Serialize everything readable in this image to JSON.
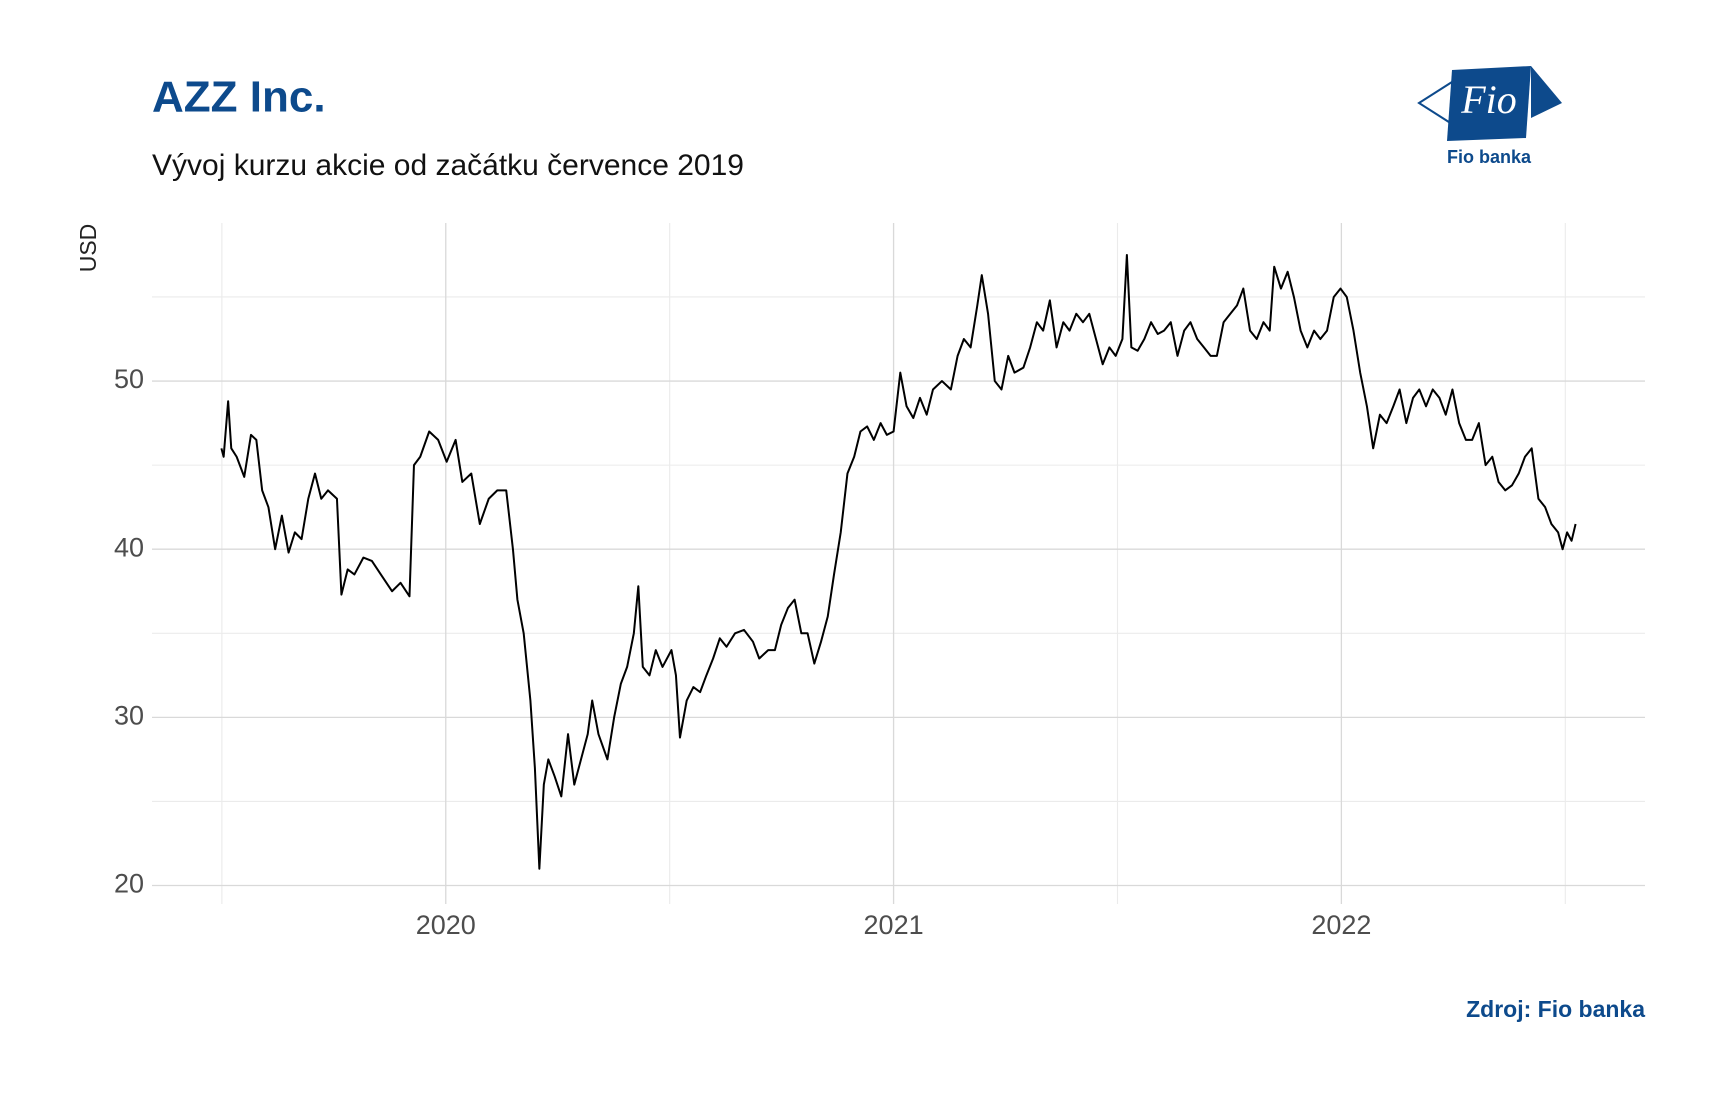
{
  "chart_data": {
    "type": "line",
    "title": "AZZ Inc.",
    "subtitle": "Vývoj kurzu akcie od začátku července 2019",
    "y_label": "USD",
    "source": "Zdroj: Fio banka",
    "logo": {
      "text": "Fio",
      "caption": "Fio banka"
    },
    "xlim": [
      2019.344,
      2022.678
    ],
    "xticks": [
      2020,
      2021,
      2022
    ],
    "xminor": [
      2019.5,
      2020.5,
      2021.5,
      2022.5
    ],
    "ylim": [
      18.9,
      59.4
    ],
    "yticks": [
      20,
      30,
      40,
      50
    ],
    "yminor": [
      25,
      35,
      45,
      55
    ],
    "grid": true,
    "series": [
      {
        "name": "AZZ",
        "color": "#000000",
        "x": [
          2019.499,
          2019.504,
          2019.514,
          2019.521,
          2019.533,
          2019.55,
          2019.565,
          2019.577,
          2019.59,
          2019.604,
          2019.619,
          2019.634,
          2019.649,
          2019.663,
          2019.678,
          2019.693,
          2019.708,
          2019.722,
          2019.737,
          2019.757,
          2019.767,
          2019.781,
          2019.796,
          2019.816,
          2019.835,
          2019.855,
          2019.88,
          2019.899,
          2019.919,
          2019.929,
          2019.943,
          2019.963,
          2019.983,
          2020.002,
          2020.022,
          2020.037,
          2020.057,
          2020.076,
          2020.096,
          2020.115,
          2020.135,
          2020.15,
          2020.16,
          2020.174,
          2020.189,
          2020.199,
          2020.209,
          2020.219,
          2020.229,
          2020.243,
          2020.258,
          2020.273,
          2020.287,
          2020.302,
          2020.317,
          2020.327,
          2020.341,
          2020.361,
          2020.376,
          2020.391,
          2020.405,
          2020.42,
          2020.43,
          2020.44,
          2020.455,
          2020.469,
          2020.484,
          2020.504,
          2020.514,
          2020.523,
          2020.538,
          2020.553,
          2020.568,
          2020.582,
          2020.597,
          2020.612,
          2020.627,
          2020.646,
          2020.666,
          2020.686,
          2020.7,
          2020.72,
          2020.735,
          2020.749,
          2020.764,
          2020.779,
          2020.794,
          2020.808,
          2020.823,
          2020.838,
          2020.853,
          2020.867,
          2020.882,
          2020.897,
          2020.912,
          2020.926,
          2020.941,
          2020.956,
          2020.971,
          2020.985,
          2021.0,
          2021.015,
          2021.029,
          2021.044,
          2021.059,
          2021.074,
          2021.088,
          2021.108,
          2021.128,
          2021.143,
          2021.157,
          2021.172,
          2021.187,
          2021.197,
          2021.211,
          2021.226,
          2021.241,
          2021.256,
          2021.27,
          2021.29,
          2021.305,
          2021.32,
          2021.334,
          2021.349,
          2021.364,
          2021.379,
          2021.393,
          2021.408,
          2021.423,
          2021.437,
          2021.452,
          2021.467,
          2021.482,
          2021.496,
          2021.511,
          2021.521,
          2021.531,
          2021.545,
          2021.56,
          2021.575,
          2021.59,
          2021.604,
          2021.619,
          2021.634,
          2021.649,
          2021.663,
          2021.678,
          2021.693,
          2021.708,
          2021.722,
          2021.737,
          2021.752,
          2021.767,
          2021.781,
          2021.796,
          2021.811,
          2021.826,
          2021.84,
          2021.85,
          2021.865,
          2021.88,
          2021.894,
          2021.909,
          2021.924,
          2021.939,
          2021.953,
          2021.968,
          2021.983,
          2021.998,
          2022.012,
          2022.027,
          2022.042,
          2022.057,
          2022.071,
          2022.086,
          2022.101,
          2022.116,
          2022.13,
          2022.145,
          2022.16,
          2022.174,
          2022.189,
          2022.204,
          2022.219,
          2022.233,
          2022.248,
          2022.263,
          2022.278,
          2022.292,
          2022.307,
          2022.322,
          2022.337,
          2022.351,
          2022.366,
          2022.381,
          2022.396,
          2022.41,
          2022.425,
          2022.44,
          2022.455,
          2022.469,
          2022.484,
          2022.494,
          2022.504,
          2022.514,
          2022.523
        ],
        "values": [
          46.0,
          45.5,
          48.8,
          46.0,
          45.5,
          44.3,
          46.8,
          46.5,
          43.5,
          42.5,
          40.0,
          42.0,
          39.8,
          41.0,
          40.6,
          43.0,
          44.5,
          43.0,
          43.5,
          43.0,
          37.3,
          38.8,
          38.5,
          39.5,
          39.3,
          38.5,
          37.5,
          38.0,
          37.2,
          45.0,
          45.5,
          47.0,
          46.5,
          45.2,
          46.5,
          44.0,
          44.5,
          41.5,
          43.0,
          43.5,
          43.5,
          40.0,
          37.0,
          35.0,
          31.0,
          27.0,
          21.0,
          26.0,
          27.5,
          26.5,
          25.3,
          29.0,
          26.0,
          27.5,
          29.0,
          31.0,
          29.0,
          27.5,
          30.0,
          32.0,
          33.0,
          35.0,
          37.8,
          33.0,
          32.5,
          34.0,
          33.0,
          34.0,
          32.5,
          28.8,
          31.0,
          31.8,
          31.5,
          32.5,
          33.5,
          34.7,
          34.2,
          35.0,
          35.2,
          34.5,
          33.5,
          34.0,
          34.0,
          35.5,
          36.5,
          37.0,
          35.0,
          35.0,
          33.2,
          34.5,
          36.0,
          38.5,
          41.0,
          44.5,
          45.5,
          47.0,
          47.3,
          46.5,
          47.5,
          46.8,
          47.0,
          50.5,
          48.5,
          47.8,
          49.0,
          48.0,
          49.5,
          50.0,
          49.5,
          51.5,
          52.5,
          52.0,
          54.5,
          56.3,
          54.0,
          50.0,
          49.5,
          51.5,
          50.5,
          50.8,
          52.0,
          53.5,
          53.0,
          54.8,
          52.0,
          53.5,
          53.0,
          54.0,
          53.5,
          54.0,
          52.5,
          51.0,
          52.0,
          51.5,
          52.5,
          57.5,
          52.0,
          51.8,
          52.5,
          53.5,
          52.8,
          53.0,
          53.5,
          51.5,
          53.0,
          53.5,
          52.5,
          52.0,
          51.5,
          51.5,
          53.5,
          54.0,
          54.5,
          55.5,
          53.0,
          52.5,
          53.5,
          53.0,
          56.8,
          55.5,
          56.5,
          55.0,
          53.0,
          52.0,
          53.0,
          52.5,
          53.0,
          55.0,
          55.5,
          55.0,
          53.0,
          50.5,
          48.5,
          46.0,
          48.0,
          47.5,
          48.5,
          49.5,
          47.5,
          49.0,
          49.5,
          48.5,
          49.5,
          49.0,
          48.0,
          49.5,
          47.5,
          46.5,
          46.5,
          47.5,
          45.0,
          45.5,
          44.0,
          43.5,
          43.8,
          44.5,
          45.5,
          46.0,
          43.0,
          42.5,
          41.5,
          41.0,
          40.0,
          41.0,
          40.5,
          41.5
        ]
      }
    ]
  }
}
